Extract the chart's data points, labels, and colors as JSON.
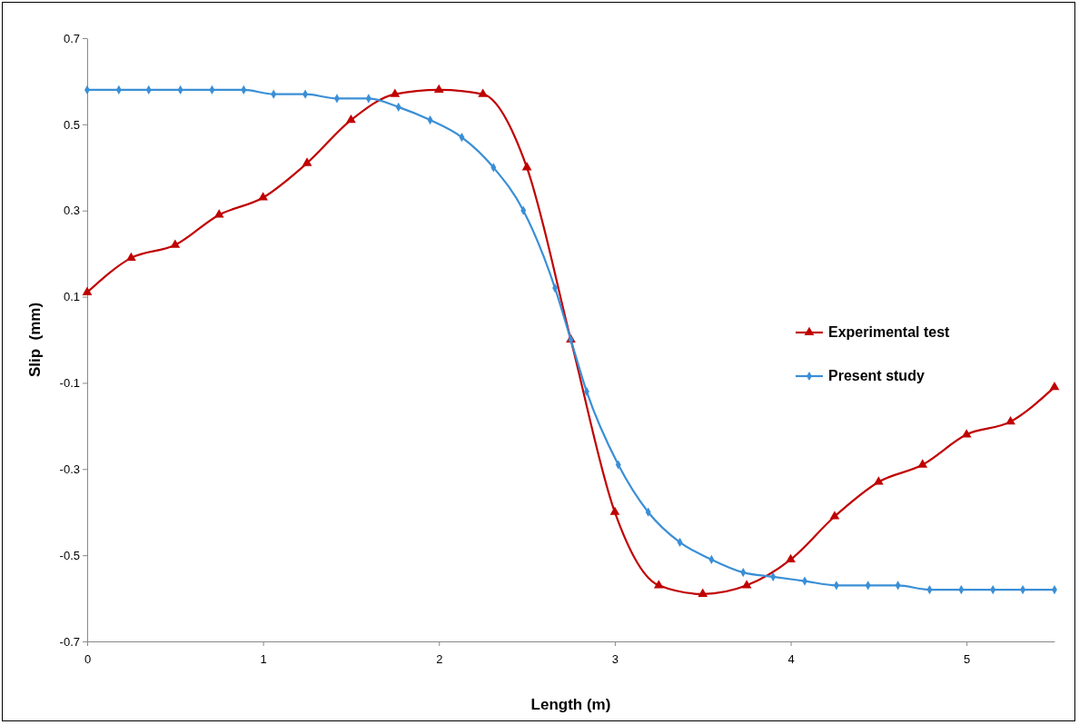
{
  "chart_data": {
    "type": "line",
    "xlabel": "Length (m)",
    "ylabel": "Slip  (mm)",
    "xlim": [
      0,
      5.5
    ],
    "xticks": [
      0,
      1,
      2,
      3,
      4,
      5
    ],
    "ylim": [
      -0.7,
      0.7
    ],
    "yticks": [
      -0.7,
      -0.5,
      -0.3,
      -0.1,
      0.1,
      0.3,
      0.5,
      0.7
    ],
    "grid": false,
    "legend": "right",
    "line_style": "solid",
    "series": [
      {
        "name": "Experimental test",
        "color": "#c00000",
        "marker": "triangle",
        "x": [
          0,
          0.25,
          0.5,
          0.75,
          1,
          1.25,
          1.5,
          1.75,
          2,
          2.25,
          2.5,
          2.75,
          3,
          3.25,
          3.5,
          3.75,
          4,
          4.25,
          4.5,
          4.75,
          5,
          5.25,
          5.5
        ],
        "values": [
          0.11,
          0.19,
          0.22,
          0.29,
          0.33,
          0.41,
          0.51,
          0.57,
          0.58,
          0.57,
          0.4,
          0,
          -0.4,
          -0.57,
          -0.59,
          -0.57,
          -0.51,
          -0.41,
          -0.33,
          -0.29,
          -0.22,
          -0.19,
          -0.11
        ]
      },
      {
        "name": "Present study",
        "color": "#3a8fd6",
        "marker": "diamond",
        "x": [
          0,
          0.18,
          0.35,
          0.53,
          0.71,
          0.89,
          1.06,
          1.24,
          1.42,
          1.6,
          1.77,
          1.95,
          2.13,
          2.31,
          2.48,
          2.66,
          2.75,
          2.84,
          3.02,
          3.19,
          3.37,
          3.55,
          3.73,
          3.9,
          4.08,
          4.26,
          4.44,
          4.61,
          4.79,
          4.97,
          5.15,
          5.32,
          5.5
        ],
        "values": [
          0.58,
          0.58,
          0.58,
          0.58,
          0.58,
          0.58,
          0.57,
          0.57,
          0.56,
          0.56,
          0.54,
          0.51,
          0.47,
          0.4,
          0.3,
          0.12,
          0,
          -0.12,
          -0.29,
          -0.4,
          -0.47,
          -0.51,
          -0.54,
          -0.55,
          -0.56,
          -0.57,
          -0.57,
          -0.57,
          -0.58,
          -0.58,
          -0.58,
          -0.58,
          -0.58
        ]
      }
    ]
  }
}
